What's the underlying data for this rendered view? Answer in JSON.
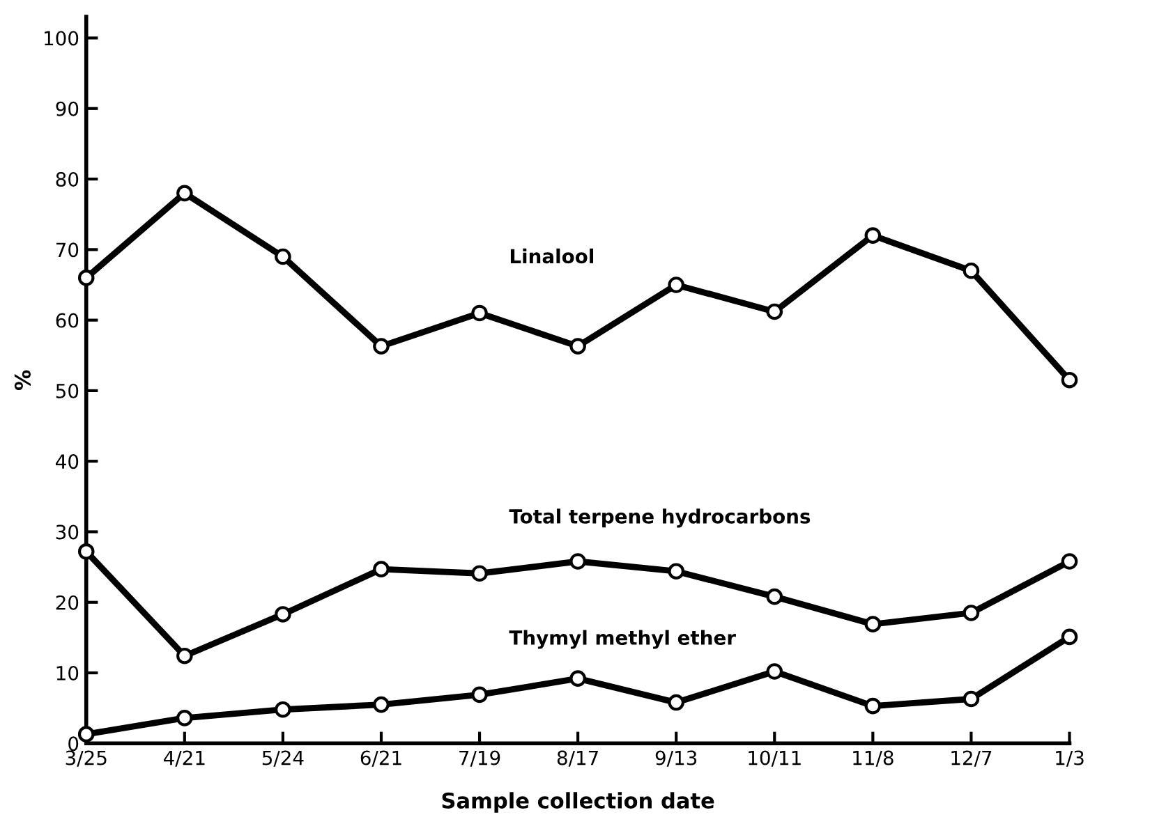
{
  "chart_data": {
    "type": "line",
    "xlabel": "Sample collection date",
    "ylabel": "%",
    "categories": [
      "3/25",
      "4/21",
      "5/24",
      "6/21",
      "7/19",
      "8/17",
      "9/13",
      "10/11",
      "11/8",
      "12/7",
      "1/3"
    ],
    "series": [
      {
        "name": "Linalool",
        "color": "#000000",
        "values": [
          66,
          78,
          69,
          56.3,
          61,
          56.3,
          65,
          61.2,
          72,
          67,
          51.5
        ]
      },
      {
        "name": "Total terpene hydrocarbons",
        "color": "#000000",
        "values": [
          27.2,
          12.4,
          18.3,
          24.7,
          24.1,
          25.8,
          24.4,
          20.8,
          16.9,
          18.5,
          25.8
        ]
      },
      {
        "name": "Thymyl methyl ether",
        "color": "#000000",
        "values": [
          1.3,
          3.6,
          4.8,
          5.5,
          6.9,
          9.2,
          5.8,
          10.2,
          5.3,
          6.3,
          15.1
        ]
      }
    ],
    "ylim": [
      0,
      103
    ],
    "yticks": [
      0,
      10,
      20,
      30,
      40,
      50,
      60,
      70,
      80,
      90,
      100
    ],
    "marker": "circle",
    "line_style": "solid",
    "grid": false,
    "legend": false
  }
}
